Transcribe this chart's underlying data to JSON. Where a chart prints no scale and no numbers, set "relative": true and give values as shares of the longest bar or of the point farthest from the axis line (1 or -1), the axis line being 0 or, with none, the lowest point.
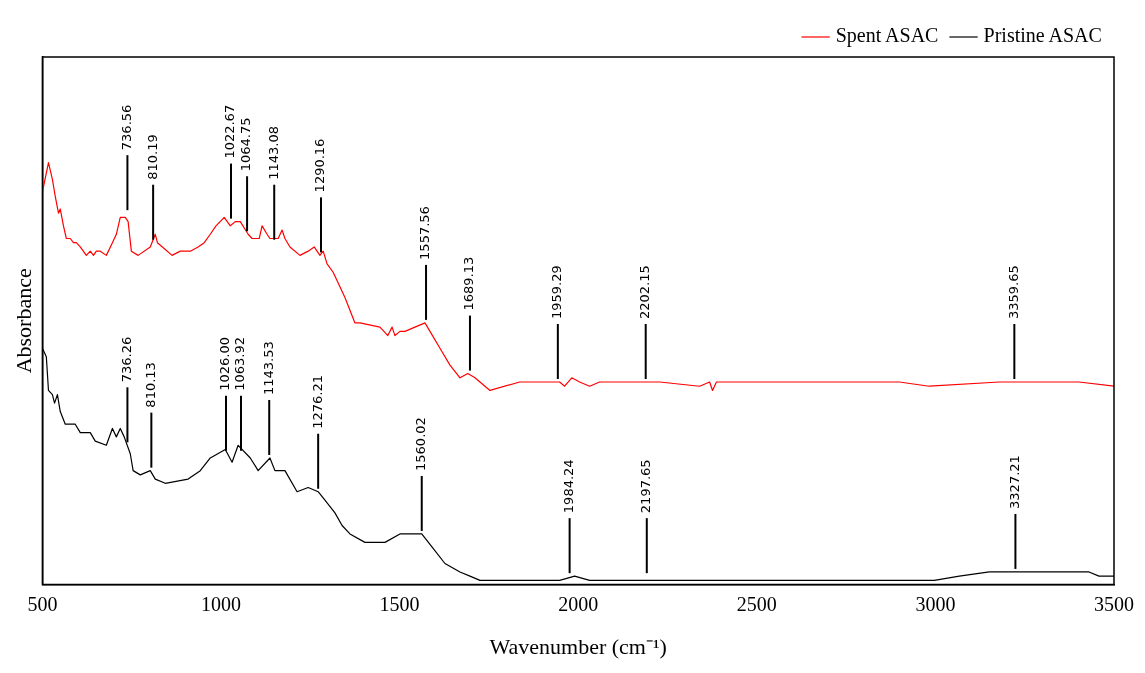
{
  "chart_data": {
    "type": "line",
    "relative": true,
    "xlabel": "Wavenumber (cm⁻¹)",
    "ylabel": "Absorbance",
    "xlim": [
      500,
      3500
    ],
    "xticks": [
      500,
      1000,
      1500,
      2000,
      2500,
      3000,
      3500
    ],
    "grid": false,
    "legend": "top right",
    "marker": "none",
    "line_style": "solid",
    "series": [
      {
        "name": "Spent ASAC",
        "color": "#ff0000",
        "x": [
          500,
          517,
          528,
          536,
          545,
          550,
          559,
          567,
          578,
          587,
          595,
          606,
          623,
          634,
          643,
          651,
          662,
          679,
          696,
          707,
          718,
          726,
          732,
          740,
          749,
          768,
          802,
          816,
          822,
          836,
          863,
          886,
          914,
          936,
          953,
          970,
          986,
          1009,
          1026,
          1040,
          1054,
          1076,
          1087,
          1107,
          1115,
          1129,
          1137,
          1160,
          1171,
          1179,
          1193,
          1221,
          1244,
          1261,
          1277,
          1286,
          1297,
          1314,
          1347,
          1375,
          1389,
          1445,
          1467,
          1479,
          1487,
          1501,
          1515,
          1543,
          1571,
          1585,
          1613,
          1641,
          1669,
          1691,
          1711,
          1753,
          1836,
          1948,
          1962,
          1982,
          2004,
          2032,
          2060,
          2088,
          2116,
          2144,
          2172,
          2228,
          2340,
          2368,
          2376,
          2387,
          2563,
          2759,
          2899,
          2983,
          3179,
          3402,
          3500
        ],
        "values": [
          0.93,
          1.0,
          0.96,
          0.92,
          0.88,
          0.89,
          0.85,
          0.82,
          0.82,
          0.81,
          0.81,
          0.8,
          0.78,
          0.79,
          0.78,
          0.79,
          0.79,
          0.78,
          0.81,
          0.83,
          0.87,
          0.87,
          0.87,
          0.86,
          0.79,
          0.78,
          0.8,
          0.83,
          0.81,
          0.8,
          0.78,
          0.79,
          0.79,
          0.8,
          0.81,
          0.83,
          0.85,
          0.87,
          0.85,
          0.86,
          0.86,
          0.83,
          0.82,
          0.82,
          0.85,
          0.83,
          0.82,
          0.82,
          0.84,
          0.82,
          0.8,
          0.78,
          0.79,
          0.8,
          0.78,
          0.79,
          0.76,
          0.74,
          0.68,
          0.62,
          0.62,
          0.61,
          0.59,
          0.61,
          0.59,
          0.6,
          0.6,
          0.61,
          0.62,
          0.6,
          0.56,
          0.52,
          0.49,
          0.5,
          0.49,
          0.46,
          0.48,
          0.48,
          0.47,
          0.49,
          0.48,
          0.47,
          0.48,
          0.48,
          0.48,
          0.48,
          0.48,
          0.48,
          0.47,
          0.48,
          0.46,
          0.48,
          0.48,
          0.48,
          0.48,
          0.47,
          0.48,
          0.48,
          0.47
        ]
      },
      {
        "name": "Pristine ASAC",
        "color": "#000000",
        "x": [
          500,
          511,
          517,
          528,
          534,
          542,
          550,
          564,
          592,
          606,
          634,
          648,
          679,
          696,
          707,
          718,
          729,
          746,
          754,
          774,
          802,
          816,
          844,
          908,
          942,
          970,
          1012,
          1031,
          1048,
          1082,
          1104,
          1137,
          1151,
          1179,
          1213,
          1244,
          1272,
          1291,
          1319,
          1339,
          1361,
          1403,
          1459,
          1501,
          1529,
          1562,
          1590,
          1627,
          1669,
          1697,
          1725,
          1836,
          1948,
          1990,
          2032,
          2088,
          2130,
          2200,
          2284,
          2340,
          2479,
          2619,
          2703,
          2843,
          2927,
          2997,
          3067,
          3151,
          3235,
          3318,
          3430,
          3458,
          3500
        ],
        "values": [
          0.56,
          0.54,
          0.46,
          0.45,
          0.43,
          0.45,
          0.41,
          0.38,
          0.38,
          0.36,
          0.36,
          0.34,
          0.33,
          0.37,
          0.35,
          0.37,
          0.35,
          0.31,
          0.27,
          0.26,
          0.27,
          0.25,
          0.24,
          0.25,
          0.27,
          0.3,
          0.32,
          0.29,
          0.33,
          0.3,
          0.27,
          0.3,
          0.27,
          0.27,
          0.22,
          0.23,
          0.22,
          0.2,
          0.17,
          0.14,
          0.12,
          0.1,
          0.1,
          0.12,
          0.12,
          0.12,
          0.09,
          0.05,
          0.03,
          0.02,
          0.01,
          0.01,
          0.01,
          0.02,
          0.01,
          0.01,
          0.01,
          0.01,
          0.01,
          0.01,
          0.01,
          0.01,
          0.01,
          0.01,
          0.01,
          0.01,
          0.02,
          0.03,
          0.03,
          0.03,
          0.03,
          0.02,
          0.02
        ]
      }
    ],
    "annotations": [
      {
        "text": "736.56",
        "x": 738,
        "y": 0.88
      },
      {
        "text": "810.19",
        "x": 810,
        "y": 0.81
      },
      {
        "text": "1022.67",
        "x": 1028,
        "y": 0.86
      },
      {
        "text": "1064.75",
        "x": 1073,
        "y": 0.83
      },
      {
        "text": "1143.08",
        "x": 1149,
        "y": 0.81
      },
      {
        "text": "1290.16",
        "x": 1280,
        "y": 0.78
      },
      {
        "text": "1557.56",
        "x": 1574,
        "y": 0.62
      },
      {
        "text": "1689.13",
        "x": 1697,
        "y": 0.5
      },
      {
        "text": "1959.29",
        "x": 1943,
        "y": 0.48
      },
      {
        "text": "2202.15",
        "x": 2189,
        "y": 0.48
      },
      {
        "text": "3359.65",
        "x": 3221,
        "y": 0.48
      },
      {
        "text": "736.26",
        "x": 738,
        "y": 0.33
      },
      {
        "text": "810.13",
        "x": 805,
        "y": 0.27
      },
      {
        "text": "1026.00",
        "x": 1014,
        "y": 0.31
      },
      {
        "text": "1063.92",
        "x": 1056,
        "y": 0.31
      },
      {
        "text": "1143.53",
        "x": 1135,
        "y": 0.3
      },
      {
        "text": "1276.21",
        "x": 1272,
        "y": 0.22
      },
      {
        "text": "1560.02",
        "x": 1562,
        "y": 0.12
      },
      {
        "text": "1984.24",
        "x": 1976,
        "y": 0.02
      },
      {
        "text": "2197.65",
        "x": 2192,
        "y": 0.02
      },
      {
        "text": "3327.21",
        "x": 3224,
        "y": 0.03
      }
    ]
  }
}
